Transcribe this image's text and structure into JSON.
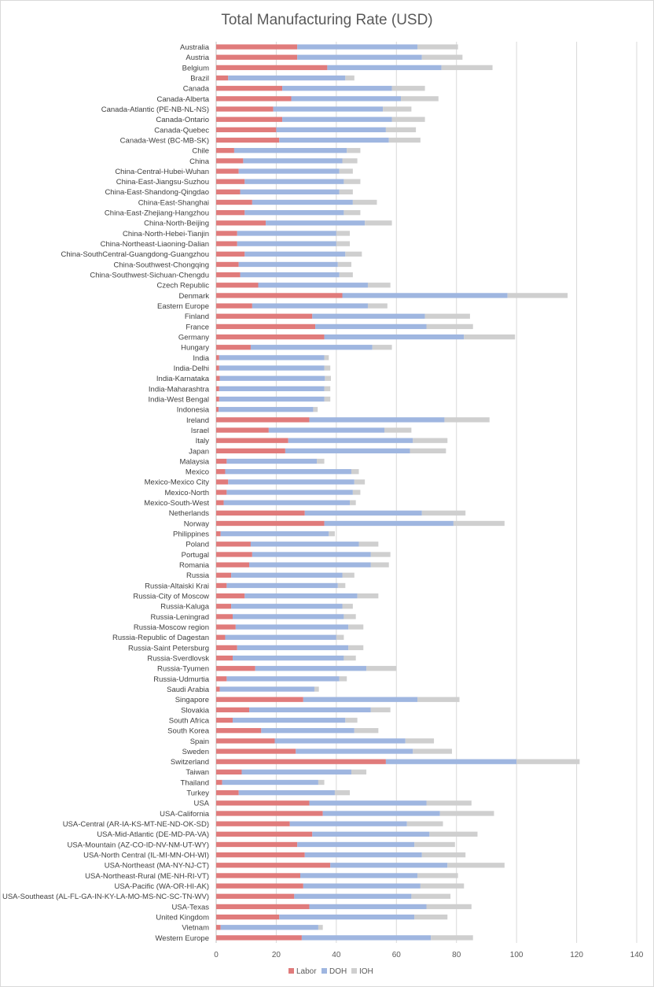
{
  "chart_data": {
    "type": "bar",
    "orientation": "horizontal",
    "stacked": true,
    "title": "Total Manufacturing Rate (USD)",
    "xlim": [
      0,
      140
    ],
    "xticks": [
      0,
      20,
      40,
      60,
      80,
      100,
      120,
      140
    ],
    "grid": "vertical",
    "legend_position": "bottom",
    "colors": {
      "Labor": "#e07b7b",
      "DOH": "#9fb6e0",
      "IOH": "#cfcfcf"
    },
    "categories": [
      "Australia",
      "Austria",
      "Belgium",
      "Brazil",
      "Canada",
      "Canada-Alberta",
      "Canada-Atlantic (PE-NB-NL-NS)",
      "Canada-Ontario",
      "Canada-Quebec",
      "Canada-West (BC-MB-SK)",
      "Chile",
      "China",
      "China-Central-Hubei-Wuhan",
      "China-East-Jiangsu-Suzhou",
      "China-East-Shandong-Qingdao",
      "China-East-Shanghai",
      "China-East-Zhejiang-Hangzhou",
      "China-North-Beijing",
      "China-North-Hebei-Tianjin",
      "China-Northeast-Liaoning-Dalian",
      "China-SouthCentral-Guangdong-Guangzhou",
      "China-Southwest-Chongqing",
      "China-Southwest-Sichuan-Chengdu",
      "Czech Republic",
      "Denmark",
      "Eastern Europe",
      "Finland",
      "France",
      "Germany",
      "Hungary",
      "India",
      "India-Delhi",
      "India-Karnataka",
      "India-Maharashtra",
      "India-West Bengal",
      "Indonesia",
      "Ireland",
      "Israel",
      "Italy",
      "Japan",
      "Malaysia",
      "Mexico",
      "Mexico-Mexico City",
      "Mexico-North",
      "Mexico-South-West",
      "Netherlands",
      "Norway",
      "Philippines",
      "Poland",
      "Portugal",
      "Romania",
      "Russia",
      "Russia-Altaiski Krai",
      "Russia-City of Moscow",
      "Russia-Kaluga",
      "Russia-Leningrad",
      "Russia-Moscow region",
      "Russia-Republic of Dagestan",
      "Russia-Saint Petersburg",
      "Russia-Sverdlovsk",
      "Russia-Tyumen",
      "Russia-Udmurtia",
      "Saudi Arabia",
      "Singapore",
      "Slovakia",
      "South Africa",
      "South Korea",
      "Spain",
      "Sweden",
      "Switzerland",
      "Taiwan",
      "Thailand",
      "Turkey",
      "USA",
      "USA-California",
      "USA-Central (AR-IA-KS-MT-NE-ND-OK-SD)",
      "USA-Mid-Atlantic (DE-MD-PA-VA)",
      "USA-Mountain (AZ-CO-ID-NV-NM-UT-WY)",
      "USA-North Central (IL-MI-MN-OH-WI)",
      "USA-Northeast (MA-NY-NJ-CT)",
      "USA-Northeast-Rural (ME-NH-RI-VT)",
      "USA-Pacific (WA-OR-HI-AK)",
      "USA-Southeast (AL-FL-GA-IN-KY-LA-MO-MS-NC-SC-TN-WV)",
      "USA-Texas",
      "United Kingdom",
      "Vietnam",
      "Western Europe"
    ],
    "series": [
      {
        "name": "Labor",
        "values": [
          27,
          27,
          37,
          4,
          22,
          25,
          19,
          22,
          20,
          21,
          6,
          9,
          7.5,
          9.5,
          8,
          12,
          9.5,
          16.5,
          7,
          7,
          9.5,
          7.5,
          8,
          14,
          42,
          12,
          32,
          33,
          36,
          11.5,
          1,
          1,
          1.2,
          1,
          1,
          0.8,
          31,
          17.5,
          24,
          23,
          3.5,
          3,
          4,
          3.5,
          2.5,
          29.5,
          36,
          1.5,
          11.5,
          12,
          11,
          5,
          3.5,
          9.5,
          5,
          5.5,
          6.5,
          3,
          7,
          5.5,
          13,
          3.5,
          1.2,
          29,
          11,
          5.5,
          15,
          19.5,
          26.5,
          56.5,
          8.5,
          2,
          7.5,
          31,
          35.5,
          24.5,
          32,
          27,
          29.5,
          38,
          28,
          29,
          26,
          31,
          21,
          1.5,
          28.5
        ]
      },
      {
        "name": "DOH",
        "values": [
          40,
          41.5,
          38,
          39,
          36.5,
          36.5,
          36.5,
          36.5,
          36.5,
          36.5,
          37.5,
          33,
          33.5,
          33,
          33,
          33.5,
          33,
          33,
          33,
          33,
          33.5,
          33,
          33,
          36.5,
          55,
          38.5,
          37.5,
          37,
          46.5,
          40.5,
          35,
          35,
          35,
          35,
          35,
          31.5,
          45,
          38.5,
          41.5,
          41.5,
          30,
          42,
          42,
          42,
          42,
          39,
          43,
          36,
          36,
          39.5,
          40.5,
          37,
          37,
          37.5,
          37,
          37,
          37.5,
          37,
          37,
          37,
          37,
          37.5,
          31.5,
          38,
          40.5,
          37.5,
          31,
          43.5,
          39,
          43.5,
          36.5,
          32,
          32,
          39,
          39,
          39,
          39,
          39,
          39,
          39,
          39,
          39,
          39,
          39,
          45,
          32.5,
          43
        ]
      },
      {
        "name": "IOH",
        "values": [
          13.5,
          13.5,
          17,
          3,
          11,
          12.5,
          9.5,
          11,
          10,
          10.5,
          4.5,
          5,
          4.5,
          5.5,
          4.5,
          8,
          5.5,
          9,
          4.5,
          4.5,
          5.5,
          4.5,
          4.5,
          7.5,
          20,
          6.5,
          15,
          15.5,
          17,
          6.5,
          1.5,
          2,
          2,
          2,
          2,
          1.5,
          15,
          9,
          11.5,
          12,
          2.5,
          2.5,
          3.5,
          2.5,
          2,
          14.5,
          17,
          2,
          6.5,
          6.5,
          6,
          4,
          2.5,
          7,
          3.5,
          4,
          5,
          2.5,
          5,
          4,
          10,
          2.5,
          1.5,
          14,
          6.5,
          4,
          8,
          9.5,
          13,
          21,
          5,
          2,
          5,
          15,
          18,
          12,
          16,
          13.5,
          14.5,
          19,
          13.5,
          14.5,
          13,
          15,
          11,
          1.5,
          14
        ]
      }
    ]
  }
}
